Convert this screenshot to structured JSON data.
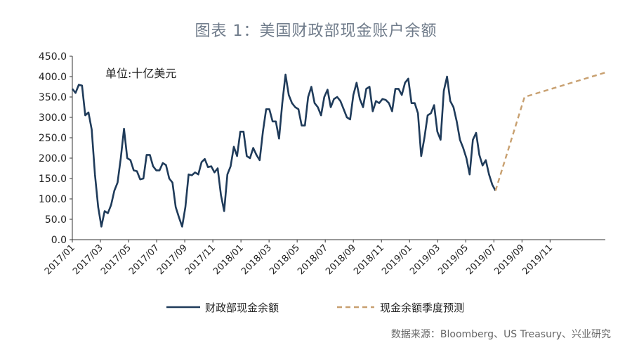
{
  "title": "图表 1：美国财政部现金账户余额",
  "source": "数据来源：Bloomberg、US Treasury、兴业研究",
  "chart_data": {
    "type": "line",
    "unit_label": "单位:十亿美元",
    "ylim": [
      0,
      450
    ],
    "yticks": [
      "0.0",
      "50.0",
      "100.0",
      "150.0",
      "200.0",
      "250.0",
      "300.0",
      "350.0",
      "400.0",
      "450.0"
    ],
    "x_tick_labels": [
      "2017/01",
      "2017/03",
      "2017/05",
      "2017/07",
      "2017/09",
      "2017/11",
      "2018/01",
      "2018/03",
      "2018/05",
      "2018/07",
      "2018/09",
      "2018/11",
      "2019/01",
      "2019/03",
      "2019/05",
      "2019/07",
      "2019/09",
      "2019/11"
    ],
    "x_start": "2017/01",
    "weeks_per_tick": 8.7,
    "legend_placement": "bottom",
    "grid": false,
    "series": [
      {
        "name": "财政部现金余额",
        "color": "#1f3b5a",
        "style": "solid",
        "values": [
          370,
          360,
          380,
          378,
          305,
          312,
          270,
          160,
          80,
          32,
          70,
          65,
          85,
          120,
          140,
          200,
          272,
          200,
          195,
          170,
          168,
          148,
          150,
          208,
          208,
          180,
          170,
          170,
          188,
          183,
          150,
          140,
          80,
          55,
          32,
          80,
          160,
          158,
          165,
          160,
          190,
          198,
          178,
          180,
          165,
          175,
          110,
          70,
          160,
          180,
          228,
          205,
          265,
          265,
          205,
          200,
          225,
          208,
          195,
          265,
          320,
          320,
          290,
          290,
          248,
          335,
          405,
          355,
          335,
          325,
          320,
          280,
          280,
          350,
          375,
          335,
          325,
          305,
          350,
          368,
          325,
          345,
          350,
          340,
          320,
          300,
          295,
          355,
          385,
          345,
          325,
          370,
          375,
          315,
          340,
          335,
          345,
          343,
          335,
          315,
          370,
          370,
          355,
          385,
          395,
          335,
          335,
          310,
          205,
          250,
          305,
          310,
          330,
          265,
          245,
          365,
          400,
          340,
          325,
          290,
          245,
          225,
          200,
          160,
          245,
          262,
          208,
          182,
          195,
          160,
          135,
          120
        ]
      },
      {
        "name": "现金余额季度预测",
        "color": "#c8a070",
        "style": "dashed",
        "points": [
          {
            "week": 131,
            "value": 120
          },
          {
            "week": 140,
            "value": 350
          },
          {
            "week": 165,
            "value": 410
          }
        ]
      }
    ]
  }
}
